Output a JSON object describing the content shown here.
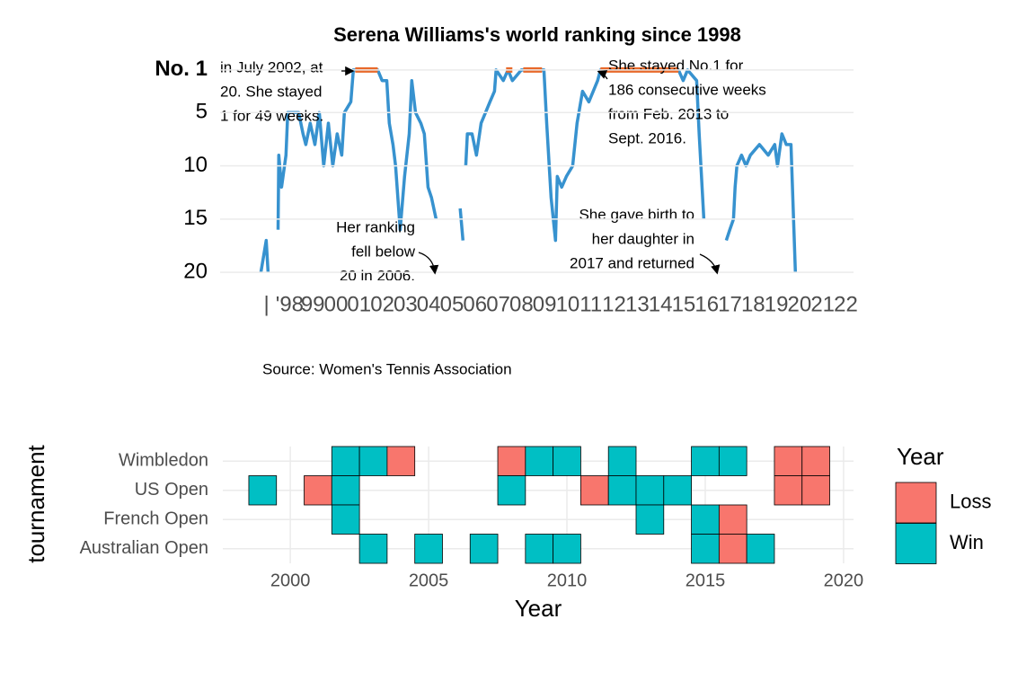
{
  "chart_data": [
    {
      "type": "line",
      "title": "Serena Williams's world ranking since 1998",
      "source": "Source: Women's Tennis Association",
      "xlim": [
        1995,
        2022.33
      ],
      "ylim": [
        21,
        0
      ],
      "yticks": [
        {
          "value": 1,
          "label": "No. 1"
        },
        5,
        10,
        15,
        20
      ],
      "xticks": [
        {
          "value": 1997,
          "label": "|"
        },
        {
          "value": 1998,
          "label": "'98"
        },
        {
          "value": 1999,
          "label": "99"
        },
        {
          "value": 2000,
          "label": "00"
        },
        {
          "value": 2001,
          "label": "01"
        },
        {
          "value": 2002,
          "label": "02"
        },
        {
          "value": 2003,
          "label": "03"
        },
        {
          "value": 2004,
          "label": "04"
        },
        {
          "value": 2005,
          "label": "05"
        },
        {
          "value": 2006,
          "label": "06"
        },
        {
          "value": 2007,
          "label": "07"
        },
        {
          "value": 2008,
          "label": "08"
        },
        {
          "value": 2009,
          "label": "09"
        },
        {
          "value": 2010,
          "label": "10"
        },
        {
          "value": 2011,
          "label": "11"
        },
        {
          "value": 2012,
          "label": "12"
        },
        {
          "value": 2013,
          "label": "13"
        },
        {
          "value": 2014,
          "label": "14"
        },
        {
          "value": 2015,
          "label": "15"
        },
        {
          "value": 2016,
          "label": "16"
        },
        {
          "value": 2017,
          "label": "17"
        },
        {
          "value": 2018,
          "label": "18"
        },
        {
          "value": 2019,
          "label": "19"
        },
        {
          "value": 2020,
          "label": "20"
        },
        {
          "value": 2021,
          "label": "21"
        },
        {
          "value": 2022,
          "label": "22"
        }
      ],
      "grid": true,
      "series": [
        {
          "color": "#3792cf",
          "x": [
            1996.76,
            1996.99,
            1997.07,
            1997.07,
            1997.5,
            1997.53,
            1997.65,
            1997.84,
            1997.92,
            1998.39,
            1998.58,
            1998.7,
            1998.89,
            1999.09,
            1999.28,
            1999.47,
            1999.67,
            1999.86,
            2000.05,
            2000.25,
            2000.36,
            2000.64,
            2000.75,
            2001.8,
            2001.99,
            2002.19,
            2002.3,
            2002.46,
            2002.57,
            2002.77,
            2002.96,
            2003.16,
            2003.27,
            2003.43,
            2003.66,
            2003.81,
            2003.97,
            2004.12,
            2004.32,
            2004.5,
            2005.36,
            2005.48,
            2005.5,
            2005.6,
            2005.67,
            2005.87,
            2006.06,
            2006.26,
            2006.45,
            2006.64,
            2006.84,
            2006.91,
            2007.22,
            2007.42,
            2007.61,
            2008.0,
            2008.97,
            2009.09,
            2009.28,
            2009.47,
            2009.55,
            2009.74,
            2009.94,
            2010.21,
            2010.4,
            2010.64,
            2010.91,
            2011.1,
            2011.29,
            2011.41,
            2014.78,
            2014.98,
            2015.17,
            2015.56,
            2015.67,
            2015.87,
            2016.0,
            2016.84,
            2016.99,
            2017.15,
            2017.22,
            2017.3,
            2017.5,
            2017.69,
            2017.88,
            2018.27,
            2018.65,
            2018.93,
            2019.05,
            2019.24,
            2019.43,
            2019.63,
            2019.82
          ],
          "values": [
            20,
            17,
            20,
            null,
            16,
            9,
            12,
            9,
            5,
            5,
            7,
            8,
            6,
            8,
            5,
            10,
            6,
            10,
            7,
            9,
            5,
            4,
            1,
            1,
            2,
            2,
            6,
            8,
            10,
            16,
            11,
            7,
            2,
            5,
            6,
            7,
            12,
            13,
            15,
            null,
            14,
            17,
            null,
            10,
            7,
            7,
            9,
            6,
            5,
            4,
            3,
            1,
            2,
            1,
            2,
            1,
            1,
            6,
            13,
            17,
            11,
            12,
            11,
            10,
            6,
            3,
            4,
            3,
            2,
            1,
            1,
            2,
            1,
            2,
            7,
            15,
            null,
            17,
            16,
            15,
            12,
            10,
            9,
            10,
            9,
            8,
            9,
            8,
            10,
            7,
            8,
            8,
            20
          ]
        },
        {
          "color": "#e8692a",
          "x": [
            2000.83,
            2001.8,
            2002.0,
            2007.34,
            2007.61,
            2007.8,
            2008.08,
            2008.89,
            2009.0,
            2011.41,
            2014.78
          ],
          "values": [
            1,
            1,
            null,
            1,
            1,
            null,
            1,
            1,
            null,
            1,
            1
          ]
        }
      ],
      "annotations": [
        [
          "in July 2002, at",
          "20. She stayed",
          "1 for 49 weeks."
        ],
        [
          "She stayed No.1 for",
          "186 consecutive weeks",
          "from Feb. 2013 to",
          "Sept. 2016."
        ],
        [
          "Her ranking",
          "fell below",
          "20 in 2006."
        ],
        [
          "She gave birth to",
          "her daughter in",
          "2017 and returned"
        ]
      ]
    },
    {
      "type": "tile",
      "x_label": "Year",
      "y_label": "tournament",
      "xlim": [
        1997.56,
        2020.36
      ],
      "xticks": [
        2000,
        2005,
        2010,
        2015,
        2020
      ],
      "grid": true,
      "categories": [
        "Australian Open",
        "French Open",
        "US Open",
        "Wimbledon"
      ],
      "legend_title": "Year",
      "series": [
        {
          "name": "Loss",
          "color": "#f8766d"
        },
        {
          "name": "Win",
          "color": "#00bfc4"
        }
      ],
      "x": [
        2002,
        2003,
        2004,
        2008,
        2009,
        2010,
        2012,
        2015,
        2016,
        2018,
        2019,
        1999,
        2001,
        2002,
        2008,
        2011,
        2012,
        2013,
        2014,
        2018,
        2019,
        2002,
        2013,
        2015,
        2016,
        2003,
        2005,
        2007,
        2009,
        2010,
        2015,
        2016,
        2017
      ],
      "y": [
        "Wimbledon",
        "Wimbledon",
        "Wimbledon",
        "Wimbledon",
        "Wimbledon",
        "Wimbledon",
        "Wimbledon",
        "Wimbledon",
        "Wimbledon",
        "Wimbledon",
        "Wimbledon",
        "US Open",
        "US Open",
        "US Open",
        "US Open",
        "US Open",
        "US Open",
        "US Open",
        "US Open",
        "US Open",
        "US Open",
        "French Open",
        "French Open",
        "French Open",
        "French Open",
        "Australian Open",
        "Australian Open",
        "Australian Open",
        "Australian Open",
        "Australian Open",
        "Australian Open",
        "Australian Open",
        "Australian Open"
      ],
      "result": [
        "Win",
        "Win",
        "Loss",
        "Loss",
        "Win",
        "Win",
        "Win",
        "Win",
        "Win",
        "Loss",
        "Loss",
        "Win",
        "Loss",
        "Win",
        "Win",
        "Loss",
        "Win",
        "Win",
        "Win",
        "Loss",
        "Loss",
        "Win",
        "Win",
        "Win",
        "Loss",
        "Win",
        "Win",
        "Win",
        "Win",
        "Win",
        "Win",
        "Loss",
        "Win"
      ]
    }
  ]
}
